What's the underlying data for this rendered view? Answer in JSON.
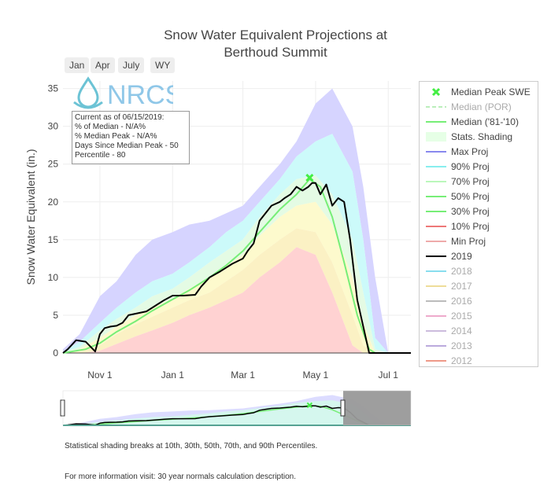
{
  "title_line1": "Snow Water Equivalent Projections at",
  "title_line2": "Berthoud Summit",
  "range_buttons": [
    "Jan",
    "Apr",
    "July",
    "WY"
  ],
  "logo_text": "NRCS",
  "info": {
    "line1": "Current as of 06/15/2019:",
    "line2": "% of Median - N/A%",
    "line3": "% Median Peak - N/A%",
    "line4": "Days Since Median Peak - 50",
    "line5": "Percentile - 80"
  },
  "legend": [
    {
      "label": "Median Peak SWE",
      "color": "#44ee44",
      "kind": "x",
      "dim": false
    },
    {
      "label": "Median (POR)",
      "color": "#bbeebb",
      "kind": "dash",
      "dim": true
    },
    {
      "label": "Median ('81-'10)",
      "color": "#77ee77",
      "kind": "line",
      "dim": false
    },
    {
      "label": "Stats. Shading",
      "color": "#e6ffe6",
      "kind": "box",
      "dim": false
    },
    {
      "label": "Max Proj",
      "color": "#8888ee",
      "kind": "line",
      "dim": false
    },
    {
      "label": "90% Proj",
      "color": "#88eeee",
      "kind": "line",
      "dim": false
    },
    {
      "label": "70% Proj",
      "color": "#bbf7bb",
      "kind": "line",
      "dim": false
    },
    {
      "label": "50% Proj",
      "color": "#77ee77",
      "kind": "line",
      "dim": false
    },
    {
      "label": "30% Proj",
      "color": "#77ee77",
      "kind": "line",
      "dim": false
    },
    {
      "label": "10% Proj",
      "color": "#ee7777",
      "kind": "line",
      "dim": false
    },
    {
      "label": "Min Proj",
      "color": "#eeaaaa",
      "kind": "line",
      "dim": false
    },
    {
      "label": "2019",
      "color": "#000000",
      "kind": "line",
      "dim": false
    },
    {
      "label": "2018",
      "color": "#88ddee",
      "kind": "line",
      "dim": true
    },
    {
      "label": "2017",
      "color": "#eedd99",
      "kind": "line",
      "dim": true
    },
    {
      "label": "2016",
      "color": "#bbbbbb",
      "kind": "line",
      "dim": true
    },
    {
      "label": "2015",
      "color": "#eeaacc",
      "kind": "line",
      "dim": true
    },
    {
      "label": "2014",
      "color": "#ccbbdd",
      "kind": "line",
      "dim": true
    },
    {
      "label": "2013",
      "color": "#bbaadd",
      "kind": "line",
      "dim": true
    },
    {
      "label": "2012",
      "color": "#ee9988",
      "kind": "line",
      "dim": true
    }
  ],
  "notes": {
    "shading": "Statistical shading breaks at 10th, 30th, 50th, 70th, and 90th Percentiles.",
    "info": "For more information visit: 30 year normals calculation description."
  },
  "chart_data": {
    "type": "area",
    "ylabel": "Snow Water Equivalent (in.)",
    "ylim": [
      0,
      36
    ],
    "yticks": [
      0,
      5,
      10,
      15,
      20,
      25,
      30,
      35
    ],
    "xlim": [
      "2018-10-01",
      "2019-07-20"
    ],
    "xticks": [
      {
        "date": "2018-11-01",
        "label": "Nov 1"
      },
      {
        "date": "2019-01-01",
        "label": "Jan 1"
      },
      {
        "date": "2019-03-01",
        "label": "Mar 1"
      },
      {
        "date": "2019-05-01",
        "label": "May 1"
      },
      {
        "date": "2019-07-01",
        "label": "Jul 1"
      }
    ],
    "grid": true,
    "legend_position": "right",
    "median_peak": {
      "date": "2019-04-26",
      "swe": 23.2
    },
    "bands": {
      "date": [
        "2018-10-01",
        "2018-10-15",
        "2018-11-01",
        "2018-11-15",
        "2018-12-01",
        "2018-12-15",
        "2019-01-01",
        "2019-01-15",
        "2019-02-01",
        "2019-02-15",
        "2019-03-01",
        "2019-03-15",
        "2019-04-01",
        "2019-04-15",
        "2019-05-01",
        "2019-05-15",
        "2019-06-01",
        "2019-06-10",
        "2019-06-20",
        "2019-07-01",
        "2019-07-10",
        "2019-07-20"
      ],
      "max": [
        0.5,
        2.5,
        7.5,
        9.5,
        13,
        15,
        16,
        17,
        17.5,
        18.5,
        19.5,
        22,
        25,
        28,
        33,
        35,
        30,
        22,
        10,
        0,
        0,
        0
      ],
      "p90": [
        0.2,
        1.5,
        4,
        6,
        8,
        9.5,
        10.5,
        12,
        14,
        16,
        17.5,
        20,
        23,
        26,
        28,
        29,
        24,
        15,
        2,
        0,
        0,
        0
      ],
      "p70": [
        0.1,
        0.8,
        3,
        4.5,
        6,
        7.5,
        8.5,
        10,
        12,
        13.5,
        15,
        18,
        21,
        23,
        23.5,
        21,
        15,
        8,
        0.5,
        0,
        0,
        0
      ],
      "p50": [
        0,
        0.5,
        2,
        3.5,
        5,
        6,
        7.2,
        8.5,
        10,
        11.5,
        13,
        15.5,
        18,
        19.5,
        20,
        17,
        10,
        4,
        0,
        0,
        0,
        0
      ],
      "p30": [
        0,
        0.2,
        1,
        2.5,
        3.8,
        4.8,
        6,
        7,
        8,
        9.5,
        11,
        13,
        15,
        16.5,
        16,
        12,
        5,
        1,
        0,
        0,
        0,
        0
      ],
      "p10": [
        0,
        0,
        0.3,
        1.2,
        2.2,
        3,
        4,
        5,
        6,
        7,
        8,
        10,
        12,
        14,
        13,
        8,
        1,
        0,
        0,
        0,
        0,
        0
      ]
    },
    "series": [
      {
        "name": "Median ('81-'10)",
        "color": "#77ee77",
        "x": [
          "2018-10-01",
          "2018-10-20",
          "2018-11-01",
          "2018-11-15",
          "2018-12-01",
          "2018-12-15",
          "2019-01-01",
          "2019-01-15",
          "2019-02-01",
          "2019-02-15",
          "2019-03-01",
          "2019-03-15",
          "2019-04-01",
          "2019-04-15",
          "2019-04-26",
          "2019-05-05",
          "2019-05-15",
          "2019-05-25",
          "2019-06-05",
          "2019-06-15",
          "2019-06-20"
        ],
        "y": [
          0,
          0.5,
          1.3,
          2.8,
          4.2,
          5.6,
          7.1,
          8.3,
          10,
          11.6,
          13.5,
          16,
          19,
          21,
          23,
          22,
          18,
          12,
          5,
          0.5,
          0
        ]
      },
      {
        "name": "2019",
        "color": "#000000",
        "x": [
          "2018-10-01",
          "2018-10-05",
          "2018-10-12",
          "2018-10-20",
          "2018-10-28",
          "2018-11-01",
          "2018-11-05",
          "2018-11-10",
          "2018-11-15",
          "2018-11-20",
          "2018-11-25",
          "2018-12-01",
          "2018-12-10",
          "2018-12-20",
          "2018-12-25",
          "2019-01-01",
          "2019-01-10",
          "2019-01-20",
          "2019-01-25",
          "2019-02-01",
          "2019-02-10",
          "2019-02-20",
          "2019-03-01",
          "2019-03-05",
          "2019-03-10",
          "2019-03-15",
          "2019-03-20",
          "2019-03-25",
          "2019-04-01",
          "2019-04-05",
          "2019-04-10",
          "2019-04-15",
          "2019-04-20",
          "2019-04-25",
          "2019-04-28",
          "2019-05-01",
          "2019-05-05",
          "2019-05-10",
          "2019-05-15",
          "2019-05-20",
          "2019-05-25",
          "2019-05-30",
          "2019-06-05",
          "2019-06-10",
          "2019-06-15",
          "2019-06-20",
          "2019-06-25",
          "2019-07-01",
          "2019-07-20"
        ],
        "y": [
          0,
          0.5,
          1.7,
          1.5,
          0.2,
          2.5,
          3.3,
          3.5,
          3.6,
          4,
          5,
          5.2,
          5.5,
          6.5,
          7,
          7.6,
          7.6,
          7.7,
          8.8,
          10,
          10.8,
          11.8,
          12.5,
          13.5,
          14.5,
          17.5,
          18.5,
          19.5,
          20,
          20.5,
          21,
          22,
          21.5,
          22,
          22.5,
          22.5,
          21,
          22.3,
          19.5,
          20.5,
          20,
          15,
          7,
          3.5,
          0,
          0,
          0,
          0,
          0
        ]
      }
    ]
  }
}
